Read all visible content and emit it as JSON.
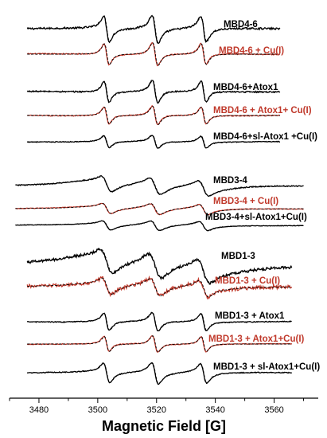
{
  "chart_data": {
    "type": "line",
    "xlabel": "Magnetic Field [G]",
    "ylabel": "",
    "xlim": [
      3470,
      3575
    ],
    "x_ticks": [
      3480,
      3500,
      3520,
      3540,
      3560
    ],
    "grid": false,
    "colors": {
      "black": "#000000",
      "red": "#c0392b"
    },
    "peaks": [
      {
        "x": 3503,
        "amp": 1.0,
        "w": 1.5
      },
      {
        "x": 3519.5,
        "amp": 1.1,
        "w": 1.6
      },
      {
        "x": 3536,
        "amp": 1.0,
        "w": 1.5
      }
    ],
    "series": [
      {
        "name": "MBD4-6",
        "color": "black",
        "x_range": [
          3476,
          3562
        ],
        "scale": 1.0,
        "broad": 0.15,
        "noise": 0.05
      },
      {
        "name": "MBD4-6 + Cu(I)",
        "color": "red",
        "x_range": [
          3476,
          3562
        ],
        "scale": 1.0,
        "broad": 0.0,
        "noise": 0.03
      },
      {
        "name": "MBD4-6+Atox1",
        "color": "black",
        "x_range": [
          3476,
          3562
        ],
        "scale": 0.9,
        "broad": 0.0,
        "noise": 0.04
      },
      {
        "name": "MBD4-6 + Atox1+ Cu(I)",
        "color": "red",
        "x_range": [
          3476,
          3562
        ],
        "scale": 0.9,
        "broad": 0.0,
        "noise": 0.03
      },
      {
        "name": "MBD4-6+sl-Atox1 +Cu(I)",
        "color": "black",
        "x_range": [
          3476,
          3562
        ],
        "scale": 0.7,
        "broad": 0.1,
        "noise": 0.03
      },
      {
        "name": "MBD3-4",
        "color": "black",
        "x_range": [
          3472,
          3570
        ],
        "scale": 0.6,
        "broad": 1.2,
        "noise": 0.03
      },
      {
        "name": "MBD3-4 + Cu(I)",
        "color": "red",
        "x_range": [
          3472,
          3570
        ],
        "scale": 0.5,
        "broad": 0.8,
        "noise": 0.02
      },
      {
        "name": "MBD3-4+sl-Atox1+Cu(I)",
        "color": "black",
        "x_range": [
          3472,
          3570
        ],
        "scale": 0.5,
        "broad": 0.8,
        "noise": 0.02
      },
      {
        "name": "MBD1-3",
        "color": "black",
        "x_range": [
          3476,
          3566
        ],
        "scale": 0.9,
        "broad": 1.6,
        "noise": 0.08
      },
      {
        "name": "MBD1-3 + Cu(I)",
        "color": "red",
        "x_range": [
          3476,
          3566
        ],
        "scale": 0.8,
        "broad": 0.9,
        "noise": 0.12
      },
      {
        "name": "MBD1-3 + Atox1",
        "color": "black",
        "x_range": [
          3476,
          3566
        ],
        "scale": 0.9,
        "broad": 0.1,
        "noise": 0.03
      },
      {
        "name": "MBD1-3 + Atox1+Cu(I)",
        "color": "red",
        "x_range": [
          3476,
          3566
        ],
        "scale": 0.9,
        "broad": 0.0,
        "noise": 0.03
      },
      {
        "name": "MBD1-3 + sl-Atox1+Cu(I)",
        "color": "black",
        "x_range": [
          3476,
          3566
        ],
        "scale": 1.0,
        "broad": 0.3,
        "noise": 0.03
      }
    ]
  }
}
